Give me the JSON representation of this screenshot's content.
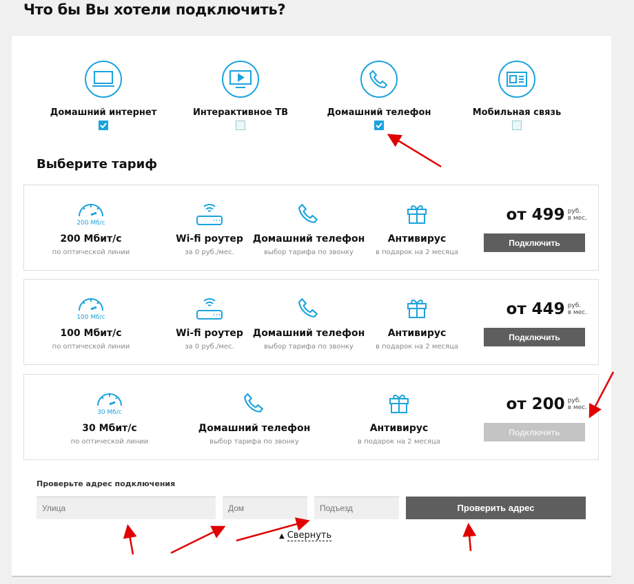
{
  "title": "Что бы Вы хотели подключить?",
  "services": [
    {
      "label": "Домашний интернет",
      "checked": true,
      "icon": "laptop-icon"
    },
    {
      "label": "Интерактивное ТВ",
      "checked": false,
      "icon": "tv-icon"
    },
    {
      "label": "Домашний телефон",
      "checked": true,
      "icon": "phone-icon"
    },
    {
      "label": "Мобильная связь",
      "checked": false,
      "icon": "sim-card-icon"
    }
  ],
  "tariff_heading": "Выберите тариф",
  "tariffs": [
    {
      "speed_badge": "200 Мб/с",
      "speed": "200 Мбит/с",
      "speed_desc": "по оптической линии",
      "router": "Wi-fi роутер",
      "router_desc": "за 0 руб./мес.",
      "phone": "Домашний телефон",
      "phone_desc": "выбор тарифа по звонку",
      "antivirus": "Антивирус",
      "antivirus_desc": "в подарок на 2 месяца",
      "price": "от 499",
      "unit1": "руб.",
      "unit2": "в мес.",
      "button": "Подключить",
      "enabled": true
    },
    {
      "speed_badge": "100 Мб/с",
      "speed": "100 Мбит/с",
      "speed_desc": "по оптической линии",
      "router": "Wi-fi роутер",
      "router_desc": "за 0 руб./мес.",
      "phone": "Домашний телефон",
      "phone_desc": "выбор тарифа по звонку",
      "antivirus": "Антивирус",
      "antivirus_desc": "в подарок на 2 месяца",
      "price": "от 449",
      "unit1": "руб.",
      "unit2": "в мес.",
      "button": "Подключить",
      "enabled": true
    },
    {
      "speed_badge": "30 Мб/с",
      "speed": "30 Мбит/с",
      "speed_desc": "по оптической линии",
      "phone": "Домашний телефон",
      "phone_desc": "выбор тарифа по звонку",
      "antivirus": "Антивирус",
      "antivirus_desc": "в подарок на 2 месяца",
      "price": "от 200",
      "unit1": "руб.",
      "unit2": "в мес.",
      "button": "Подключить",
      "enabled": false
    }
  ],
  "address": {
    "label": "Проверьте адрес подключения",
    "street_placeholder": "Улица",
    "house_placeholder": "Дом",
    "entrance_placeholder": "Подъезд",
    "check_button": "Проверить адрес",
    "collapse": "Свернуть"
  },
  "colors": {
    "accent": "#1aa3dd",
    "button": "#5e5e5e",
    "annotation": "#e00000"
  }
}
